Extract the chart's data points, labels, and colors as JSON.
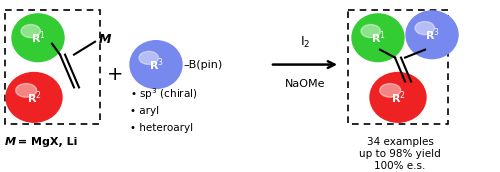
{
  "bg_color": "#ffffff",
  "green_color": "#33cc33",
  "red_color": "#ee2222",
  "blue_color": "#7788ee",
  "black": "#000000",
  "r1_label": "R$^1$",
  "r2_label": "R$^2$",
  "r3_label": "R$^3$",
  "reagent_top": "I$_2$",
  "reagent_bot": "NaOMe",
  "m_label": "M",
  "m_def_italic": "M",
  "m_def_rest": " = MgX, Li",
  "boron_dash": "–B(pin)",
  "bullet1": "• sp$^3$ (chiral)",
  "bullet2": "• aryl",
  "bullet3": "• heteroaryl",
  "result1": "34 examples",
  "result2": "up to 98% yield",
  "result3": "100% e.s.",
  "plus_sign": "+",
  "figw": 5.0,
  "figh": 1.72,
  "dpi": 100
}
